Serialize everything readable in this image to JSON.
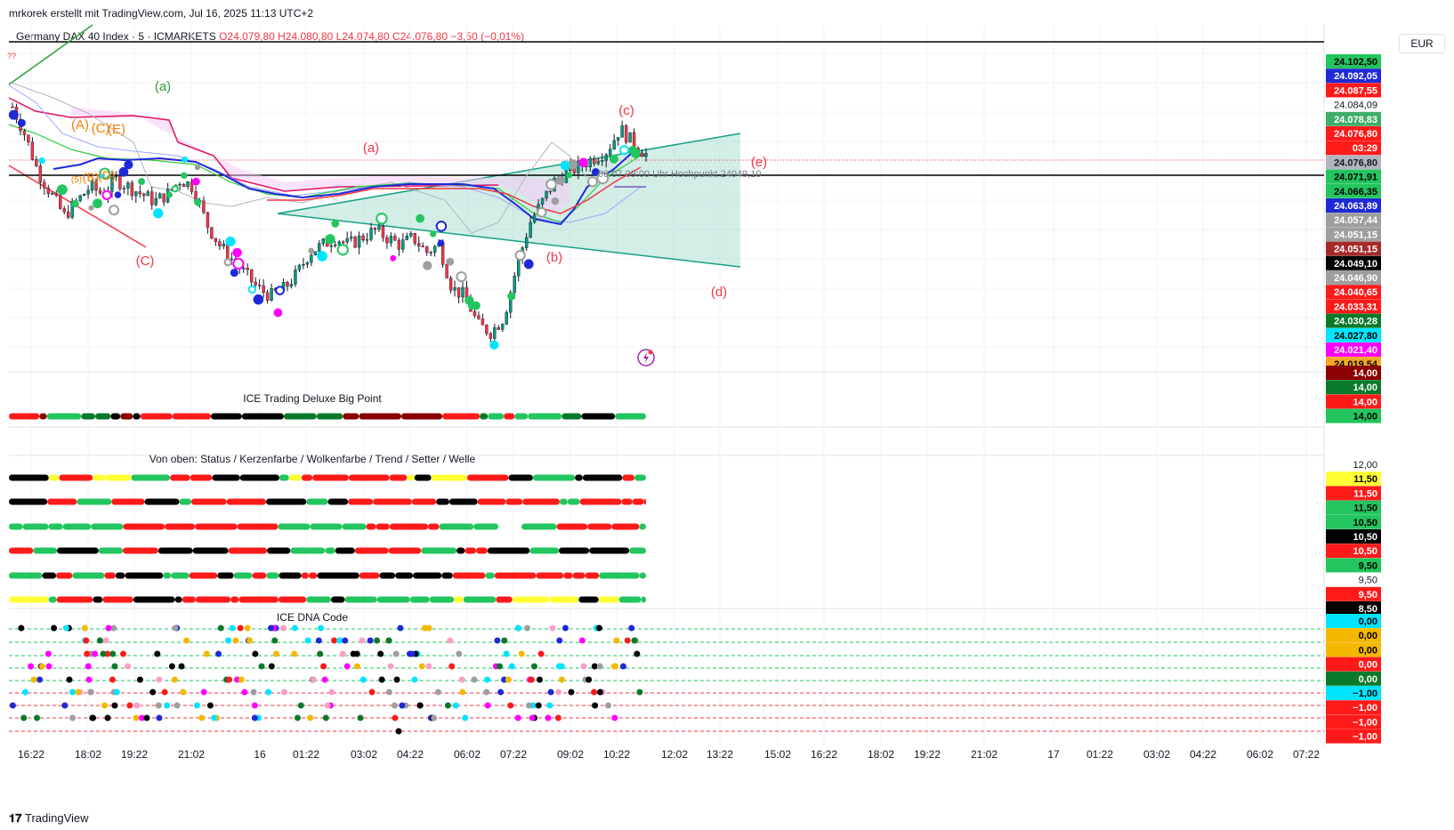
{
  "credit": "mrkorek erstellt mit TradingView.com, Jul 16, 2025 11:13 UTC+2",
  "legend": {
    "symbol": "Germany DAX 40 Index · 5 · ICMARKETS",
    "open": "O24.079,80",
    "high": "H24.080,80",
    "low": "L24.074,80",
    "close": "C24.076,80",
    "change": "−3,50 (−0,01%)"
  },
  "currency": "EUR",
  "pane_titles": {
    "big_point": "ICE Trading Deluxe Big Point",
    "rows": "Von oben: Status / Kerzenfarbe / Wolkenfarbe / Trend / Setter / Welle",
    "dna": "ICE DNA Code"
  },
  "annotation_text": "06.07 09:00 Uhr Hochpunkt 24049,10",
  "wave_labels": [
    {
      "text": "(a)",
      "color": "#2e9e3e"
    },
    {
      "text": "(C)",
      "color": "#f23645"
    },
    {
      "text": "(a)",
      "color": "#f23645"
    },
    {
      "text": "(b)",
      "color": "#f23645"
    },
    {
      "text": "(c)",
      "color": "#f23645"
    },
    {
      "text": "(d)",
      "color": "#f23645"
    },
    {
      "text": "(e)",
      "color": "#f23645"
    },
    {
      "text": "(A)",
      "color": "#f57c00"
    },
    {
      "text": "(C)",
      "color": "#f57c00"
    },
    {
      "text": "(E)",
      "color": "#f57c00"
    },
    {
      "text": "(5)",
      "color": "#f57c00"
    },
    {
      "text": "(B)",
      "color": "#f57c00"
    },
    {
      "text": "(D)",
      "color": "#f57c00"
    },
    {
      "text": "??",
      "color": "#f23645"
    }
  ],
  "icons": {
    "lightning": "lightning-icon",
    "logo": "tradingview-logo-icon"
  },
  "footer": {
    "brand": "TradingView"
  },
  "chart_data": {
    "type": "line",
    "title": "Germany DAX 40 Index · 5 · ICMARKETS",
    "x_ticks": [
      "16:22",
      "18:02",
      "19:22",
      "21:02",
      "16",
      "01:22",
      "03:02",
      "04:22",
      "06:02",
      "07:22",
      "09:02",
      "10:22",
      "12:02",
      "13:22",
      "15:02",
      "16:22",
      "18:02",
      "19:22",
      "21:02",
      "17",
      "01:22",
      "03:02",
      "04:22",
      "06:02",
      "07:22"
    ],
    "price_axis_labels": [
      {
        "value": "24.102,50",
        "bg": "#22c55e",
        "fg": "#000000"
      },
      {
        "value": "24.092,05",
        "bg": "#1e2ad6",
        "fg": "#ffffff"
      },
      {
        "value": "24.087,55",
        "bg": "#ff1a1a",
        "fg": "#ffffff"
      },
      {
        "value": "24.084,09",
        "bg": "",
        "fg": "#131722"
      },
      {
        "value": "24.078,83",
        "bg": "#3fae6a",
        "fg": "#ffffff"
      },
      {
        "value": "24.076,80",
        "bg": "#ff1a1a",
        "fg": "#ffffff"
      },
      {
        "value": "03:29",
        "bg": "#ff1a1a",
        "fg": "#ffffff"
      },
      {
        "value": "24.076,80",
        "bg": "#b2b5be",
        "fg": "#131722"
      },
      {
        "value": "24.071,91",
        "bg": "#22c55e",
        "fg": "#000000"
      },
      {
        "value": "24.066,35",
        "bg": "#22c55e",
        "fg": "#000000"
      },
      {
        "value": "24.063,89",
        "bg": "#1e2ad6",
        "fg": "#ffffff"
      },
      {
        "value": "24.057,44",
        "bg": "#9e9e9e",
        "fg": "#ffffff"
      },
      {
        "value": "24.051,15",
        "bg": "#9e9e9e",
        "fg": "#ffffff"
      },
      {
        "value": "24.051,15",
        "bg": "#a52a2a",
        "fg": "#ffffff"
      },
      {
        "value": "24.049,10",
        "bg": "#000000",
        "fg": "#ffffff"
      },
      {
        "value": "24.046,90",
        "bg": "#9e9e9e",
        "fg": "#ffffff"
      },
      {
        "value": "24.040,65",
        "bg": "#ff1a1a",
        "fg": "#ffffff"
      },
      {
        "value": "24.033,31",
        "bg": "#ff1a1a",
        "fg": "#ffffff"
      },
      {
        "value": "24.030,28",
        "bg": "#0a7a2a",
        "fg": "#ffffff"
      },
      {
        "value": "24.027,80",
        "bg": "#00e5ff",
        "fg": "#000000"
      },
      {
        "value": "24.021,40",
        "bg": "#ff00ff",
        "fg": "#ffffff"
      },
      {
        "value": "24.019,54",
        "bg": "#f5a623",
        "fg": "#000000"
      }
    ],
    "big_point_axis_labels": [
      {
        "value": "14,00",
        "bg": "#8b0000",
        "fg": "#ffffff"
      },
      {
        "value": "14,00",
        "bg": "#0a7a2a",
        "fg": "#ffffff"
      },
      {
        "value": "14,00",
        "bg": "#ff1a1a",
        "fg": "#ffffff"
      },
      {
        "value": "14,00",
        "bg": "#22c55e",
        "fg": "#000000"
      }
    ],
    "rows_axis_labels": [
      {
        "value": "12,00",
        "bg": "",
        "fg": "#131722"
      },
      {
        "value": "11,50",
        "bg": "#ffff33",
        "fg": "#000000"
      },
      {
        "value": "11,50",
        "bg": "#ff1a1a",
        "fg": "#ffffff"
      },
      {
        "value": "11,50",
        "bg": "#22c55e",
        "fg": "#000000"
      },
      {
        "value": "10,50",
        "bg": "#22c55e",
        "fg": "#000000"
      },
      {
        "value": "10,50",
        "bg": "#000000",
        "fg": "#ffffff"
      },
      {
        "value": "10,50",
        "bg": "#ff1a1a",
        "fg": "#ffffff"
      },
      {
        "value": "9,50",
        "bg": "#22c55e",
        "fg": "#000000"
      },
      {
        "value": "9,50",
        "bg": "",
        "fg": "#131722"
      },
      {
        "value": "9,50",
        "bg": "#ff1a1a",
        "fg": "#ffffff"
      },
      {
        "value": "8,50",
        "bg": "#000000",
        "fg": "#ffffff"
      }
    ],
    "dna_axis_labels": [
      {
        "value": "0,00",
        "bg": "#00e5ff",
        "fg": "#000000"
      },
      {
        "value": "0,00",
        "bg": "#f5b800",
        "fg": "#000000"
      },
      {
        "value": "0,00",
        "bg": "#f5b800",
        "fg": "#000000"
      },
      {
        "value": "0,00",
        "bg": "#ff1a1a",
        "fg": "#ffffff"
      },
      {
        "value": "0,00",
        "bg": "#0a7a2a",
        "fg": "#ffffff"
      },
      {
        "value": "−1,00",
        "bg": "#00e5ff",
        "fg": "#000000"
      },
      {
        "value": "−1,00",
        "bg": "#ff1a1a",
        "fg": "#ffffff"
      },
      {
        "value": "−1,00",
        "bg": "#ff1a1a",
        "fg": "#ffffff"
      },
      {
        "value": "−1,00",
        "bg": "#ff1a1a",
        "fg": "#ffffff"
      }
    ],
    "series": [
      {
        "values": [
          24090,
          24082,
          24072,
          24066,
          24060,
          24064,
          24068,
          24066,
          24070,
          24068,
          24066,
          24064,
          24066,
          24070,
          24068,
          24058,
          24052,
          24048,
          24044,
          24040,
          24038,
          24040,
          24044,
          24050,
          24052,
          24054,
          24052,
          24054,
          24056,
          24054,
          24052,
          24054,
          24050,
          24052,
          24040,
          24038,
          24030,
          24028,
          24032,
          24046,
          24058,
          24064,
          24070,
          24072,
          24074,
          24076,
          24078,
          24084,
          24080,
          24077
        ]
      }
    ]
  }
}
